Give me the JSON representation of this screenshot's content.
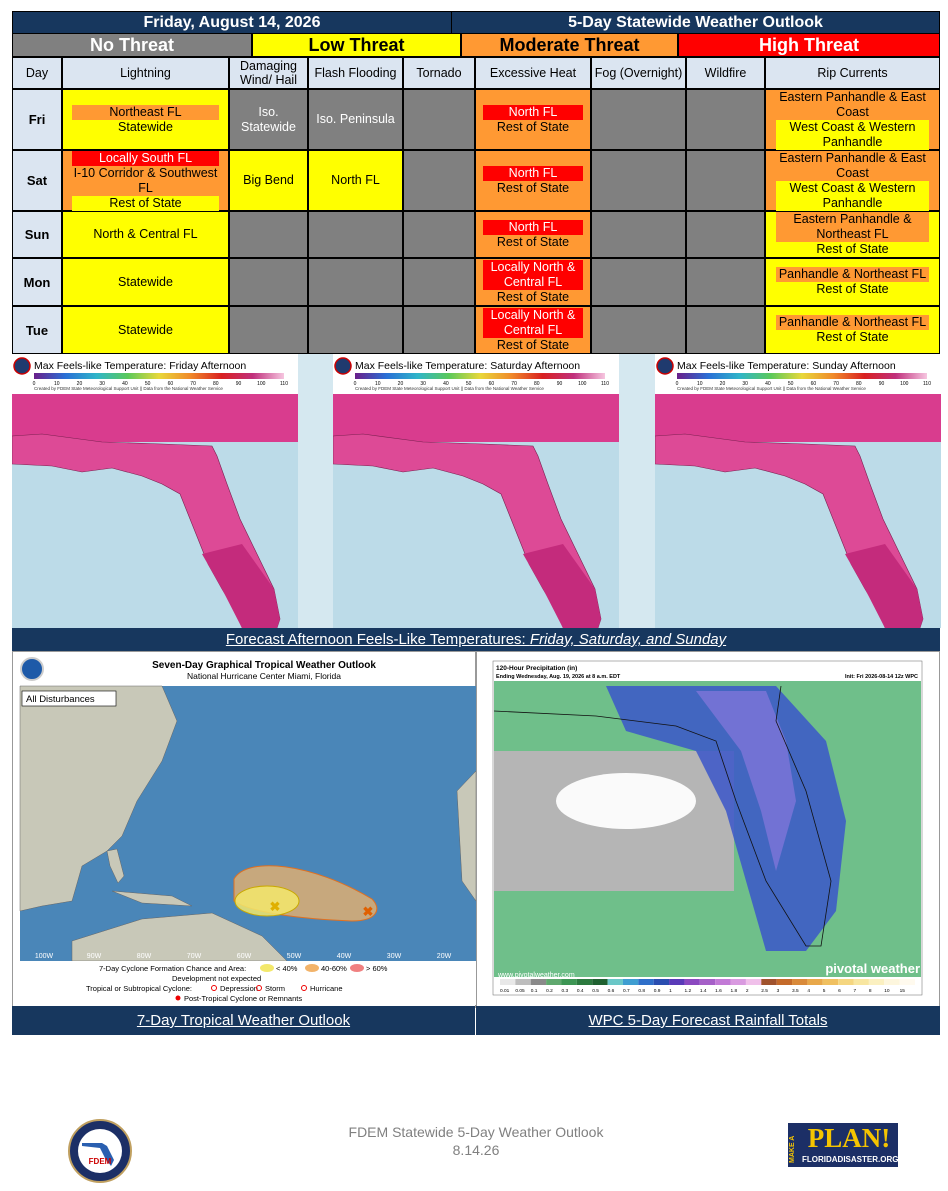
{
  "header": {
    "date": "Friday, August 14, 2026",
    "title": "5-Day Statewide Weather Outlook"
  },
  "legend": [
    "No Threat",
    "Low Threat",
    "Moderate Threat",
    "High Threat"
  ],
  "legend_colors": [
    "#808080",
    "#ffff00",
    "#ff9933",
    "#ff0000"
  ],
  "legend_text_colors": [
    "#ffffff",
    "#000000",
    "#000000",
    "#ffffff"
  ],
  "table": {
    "columns": [
      "Day",
      "Lightning",
      "Damaging Wind/ Hail",
      "Flash Flooding",
      "Tornado",
      "Excessive Heat",
      "Fog (Overnight)",
      "Wildfire",
      "Rip Currents"
    ],
    "rows": [
      {
        "day": "Fri",
        "cells": [
          {
            "level": 1,
            "items": [
              {
                "text": "Northeast FL",
                "level": 2
              },
              {
                "text": "Statewide",
                "level": 1
              }
            ]
          },
          {
            "level": 0,
            "items": [
              {
                "text": "Iso. Statewide",
                "level": 0
              }
            ]
          },
          {
            "level": 0,
            "items": [
              {
                "text": "Iso. Peninsula",
                "level": 0
              }
            ]
          },
          {
            "level": 0,
            "items": []
          },
          {
            "level": 2,
            "items": [
              {
                "text": "North FL",
                "level": 3
              },
              {
                "text": "Rest of State",
                "level": 2
              }
            ]
          },
          {
            "level": 0,
            "items": []
          },
          {
            "level": 0,
            "items": []
          },
          {
            "level": 2,
            "items": [
              {
                "text": "Eastern Panhandle & East Coast",
                "level": 2
              },
              {
                "text": "West Coast & Western Panhandle",
                "level": 1
              }
            ]
          }
        ]
      },
      {
        "day": "Sat",
        "cells": [
          {
            "level": 2,
            "items": [
              {
                "text": "Locally South FL",
                "level": 3
              },
              {
                "text": "I-10 Corridor & Southwest FL",
                "level": 2
              },
              {
                "text": "Rest of State",
                "level": 1
              }
            ]
          },
          {
            "level": 1,
            "items": [
              {
                "text": "Big Bend",
                "level": 1
              }
            ]
          },
          {
            "level": 1,
            "items": [
              {
                "text": "North FL",
                "level": 1
              }
            ]
          },
          {
            "level": 0,
            "items": []
          },
          {
            "level": 2,
            "items": [
              {
                "text": "North FL",
                "level": 3
              },
              {
                "text": "Rest of State",
                "level": 2
              }
            ]
          },
          {
            "level": 0,
            "items": []
          },
          {
            "level": 0,
            "items": []
          },
          {
            "level": 2,
            "items": [
              {
                "text": "Eastern Panhandle & East Coast",
                "level": 2
              },
              {
                "text": "West Coast & Western Panhandle",
                "level": 1
              }
            ]
          }
        ]
      },
      {
        "day": "Sun",
        "cells": [
          {
            "level": 1,
            "items": [
              {
                "text": "North & Central FL",
                "level": 1
              }
            ]
          },
          {
            "level": 0,
            "items": []
          },
          {
            "level": 0,
            "items": []
          },
          {
            "level": 0,
            "items": []
          },
          {
            "level": 2,
            "items": [
              {
                "text": "North FL",
                "level": 3
              },
              {
                "text": "Rest of State",
                "level": 2
              }
            ]
          },
          {
            "level": 0,
            "items": []
          },
          {
            "level": 0,
            "items": []
          },
          {
            "level": 1,
            "items": [
              {
                "text": "Eastern Panhandle & Northeast FL",
                "level": 2
              },
              {
                "text": "Rest of State",
                "level": 1
              }
            ]
          }
        ]
      },
      {
        "day": "Mon",
        "cells": [
          {
            "level": 1,
            "items": [
              {
                "text": "Statewide",
                "level": 1
              }
            ]
          },
          {
            "level": 0,
            "items": []
          },
          {
            "level": 0,
            "items": []
          },
          {
            "level": 0,
            "items": []
          },
          {
            "level": 2,
            "items": [
              {
                "text": "Locally North & Central FL",
                "level": 3
              },
              {
                "text": "Rest of State",
                "level": 2
              }
            ]
          },
          {
            "level": 0,
            "items": []
          },
          {
            "level": 0,
            "items": []
          },
          {
            "level": 1,
            "items": [
              {
                "text": "Panhandle & Northeast FL",
                "level": 2
              },
              {
                "text": "Rest of State",
                "level": 1
              }
            ]
          }
        ]
      },
      {
        "day": "Tue",
        "cells": [
          {
            "level": 1,
            "items": [
              {
                "text": "Statewide",
                "level": 1
              }
            ]
          },
          {
            "level": 0,
            "items": []
          },
          {
            "level": 0,
            "items": []
          },
          {
            "level": 0,
            "items": []
          },
          {
            "level": 2,
            "items": [
              {
                "text": "Locally North & Central FL",
                "level": 3
              },
              {
                "text": "Rest of State",
                "level": 2
              }
            ]
          },
          {
            "level": 0,
            "items": []
          },
          {
            "level": 0,
            "items": []
          },
          {
            "level": 1,
            "items": [
              {
                "text": "Panhandle & Northeast FL",
                "level": 2
              },
              {
                "text": "Rest of State",
                "level": 1
              }
            ]
          }
        ]
      }
    ]
  },
  "maps": {
    "panels": [
      {
        "title": "Max Feels-like Temperature: Friday Afternoon"
      },
      {
        "title": "Max Feels-like Temperature: Saturday Afternoon"
      },
      {
        "title": "Max Feels-like Temperature: Sunday Afternoon"
      }
    ],
    "credit": "Created by FDEM State Meteorological Support Unit || Data from the National Weather Service",
    "scale_ticks": [
      0,
      10,
      20,
      30,
      40,
      50,
      60,
      70,
      80,
      90,
      100,
      110
    ],
    "caption": "Forecast Afternoon Feels-Like Temperatures: ",
    "caption_days": "Friday, Saturday, and Sunday"
  },
  "tropical": {
    "title": "Seven-Day Graphical Tropical Weather Outlook",
    "subtitle": "National Hurricane Center  Miami, Florida",
    "badge": "All Disturbances",
    "longitudes": [
      "100W",
      "90W",
      "80W",
      "70W",
      "60W",
      "50W",
      "40W",
      "30W",
      "20W"
    ],
    "legend_title": "7-Day Cyclone Formation Chance and Area:",
    "chances": [
      "< 40%",
      "40-60%",
      "> 60%"
    ],
    "not_expected": "Development not expected",
    "cyclone_title": "Tropical or Subtropical Cyclone:",
    "cyclones": [
      "Depression",
      "Storm",
      "Hurricane"
    ],
    "post": "Post-Tropical Cyclone or Remnants",
    "caption": "7-Day Tropical Weather Outlook"
  },
  "rainfall": {
    "title": "120-Hour Precipitation (in)",
    "subtitle": "Ending Wednesday, Aug. 19, 2026 at 8 a.m. EDT",
    "init": "Init: Fri 2026-08-14 12z WPC",
    "site": "www.pivotalweather.com",
    "brand": "pivotal weather",
    "scale": [
      0.01,
      0.05,
      0.1,
      0.2,
      0.3,
      0.4,
      0.5,
      0.6,
      0.7,
      0.8,
      0.9,
      1,
      1.2,
      1.4,
      1.6,
      1.8,
      2,
      2.5,
      3,
      3.5,
      4,
      5,
      6,
      7,
      8,
      10,
      15
    ],
    "caption": "WPC 5-Day Forecast Rainfall Totals"
  },
  "footer": {
    "line1": "FDEM Statewide 5-Day Weather Outlook",
    "line2": "8.14.26",
    "fdem": "FDEM",
    "make": "MAKE A",
    "plan": "PLAN!",
    "url": "FLORIDADISASTER.ORG"
  }
}
